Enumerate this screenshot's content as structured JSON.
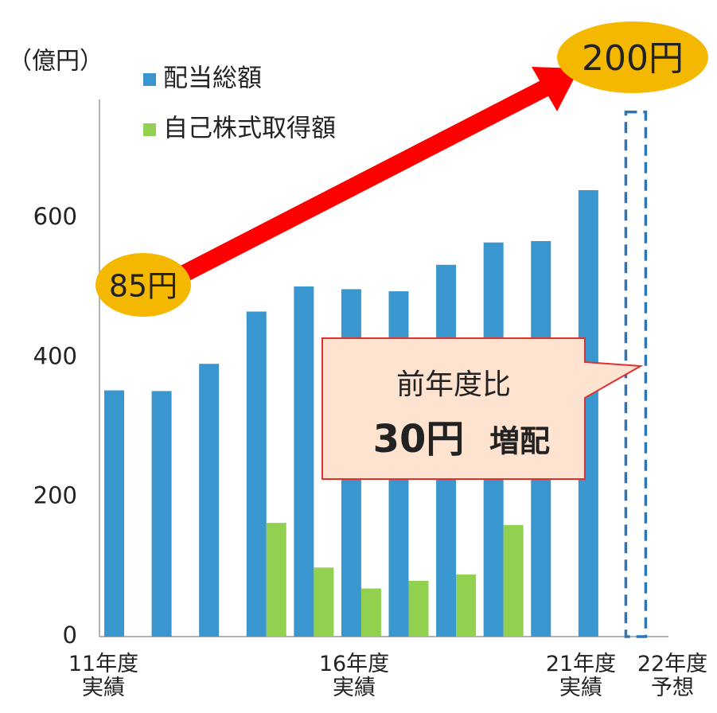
{
  "chart_data": {
    "type": "bar",
    "y_axis_label": "（億円）",
    "categories": [
      "11年度\n実績",
      null,
      null,
      null,
      null,
      "16年度\n実績",
      null,
      null,
      null,
      null,
      "21年度\n実績",
      "22年度\n予想"
    ],
    "series": [
      {
        "name": "配当総額",
        "color": "#3a96cf",
        "values": [
          353,
          352,
          391,
          466,
          502,
          498,
          495,
          533,
          565,
          567,
          640,
          752
        ],
        "forecast": [
          false,
          false,
          false,
          false,
          false,
          false,
          false,
          false,
          false,
          false,
          false,
          true
        ]
      },
      {
        "name": "自己株式取得額",
        "color": "#92d050",
        "values": [
          null,
          null,
          null,
          163,
          99,
          69,
          80,
          89,
          160,
          null,
          null,
          null
        ]
      }
    ],
    "ylim": [
      0,
      770
    ],
    "yticks": [
      0,
      200,
      400,
      600
    ],
    "annotations": {
      "start_dividend": "85円",
      "end_dividend": "200円",
      "callout_line1": "前年度比",
      "callout_amount": "30円",
      "callout_word": "増配"
    }
  }
}
